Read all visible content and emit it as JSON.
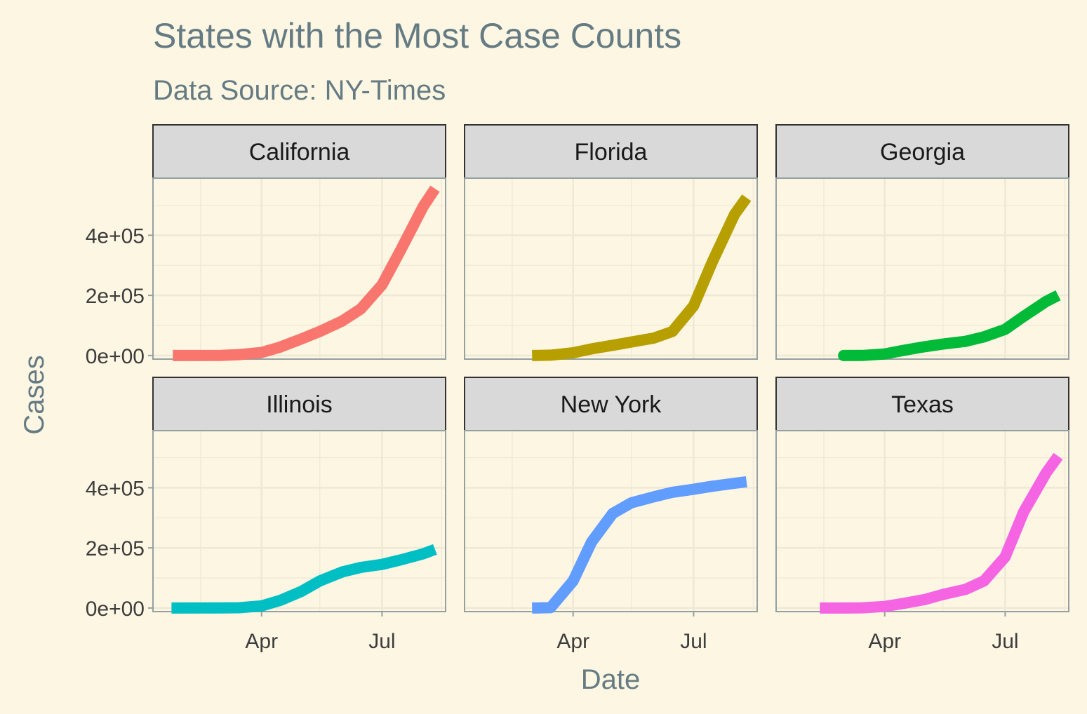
{
  "chart_data": {
    "type": "line",
    "title": "States with the Most Case Counts",
    "subtitle": "Data Source: NY-Times",
    "xlabel": "Date",
    "ylabel": "Cases",
    "x": [
      "2020-02-01",
      "2020-03-01",
      "2020-03-15",
      "2020-04-01",
      "2020-04-15",
      "2020-05-01",
      "2020-05-15",
      "2020-06-01",
      "2020-06-15",
      "2020-07-01",
      "2020-07-15",
      "2020-08-01",
      "2020-08-10"
    ],
    "xlim": [
      "2020-01-10",
      "2020-08-18"
    ],
    "ylim": [
      -12000,
      590000
    ],
    "x_ticks": [
      {
        "date": "2020-04-01",
        "label": "Apr"
      },
      {
        "date": "2020-07-01",
        "label": "Jul"
      }
    ],
    "x_minor_ticks": [
      "2020-02-15",
      "2020-05-15",
      "2020-08-15"
    ],
    "y_ticks": [
      {
        "value": 0,
        "label": "0e+00"
      },
      {
        "value": 200000,
        "label": "2e+05"
      },
      {
        "value": 400000,
        "label": "4e+05"
      }
    ],
    "y_minor_ticks": [
      100000,
      300000,
      500000
    ],
    "grid": true,
    "legend": "none",
    "facets": {
      "rows": 2,
      "cols": 3,
      "shared_axes": true
    },
    "series": [
      {
        "name": "California",
        "color": "#F8766D",
        "start": "2020-01-25",
        "values": [
          null,
          200,
          3000,
          10000,
          28000,
          55000,
          80000,
          115000,
          155000,
          235000,
          350000,
          495000,
          555000
        ]
      },
      {
        "name": "Florida",
        "color": "#B79F00",
        "start": "2020-03-01",
        "values": [
          null,
          0,
          1000,
          9000,
          22000,
          34000,
          45000,
          58000,
          80000,
          165000,
          310000,
          470000,
          525000
        ]
      },
      {
        "name": "Georgia",
        "color": "#00BA38",
        "start": "2020-03-02",
        "values": [
          null,
          0,
          200,
          5000,
          17000,
          29000,
          38000,
          47000,
          62000,
          87000,
          130000,
          180000,
          200000
        ]
      },
      {
        "name": "Illinois",
        "color": "#00BFC4",
        "start": "2020-01-24",
        "values": [
          null,
          100,
          800,
          7000,
          25000,
          55000,
          90000,
          120000,
          135000,
          145000,
          160000,
          180000,
          195000
        ]
      },
      {
        "name": "New York",
        "color": "#619CFF",
        "start": "2020-03-01",
        "values": [
          null,
          0,
          1000,
          90000,
          220000,
          315000,
          350000,
          370000,
          385000,
          395000,
          405000,
          415000,
          420000
        ]
      },
      {
        "name": "Texas",
        "color": "#F564E3",
        "start": "2020-02-12",
        "values": [
          null,
          0,
          500,
          5000,
          15000,
          28000,
          45000,
          62000,
          90000,
          170000,
          320000,
          450000,
          505000
        ]
      }
    ]
  }
}
